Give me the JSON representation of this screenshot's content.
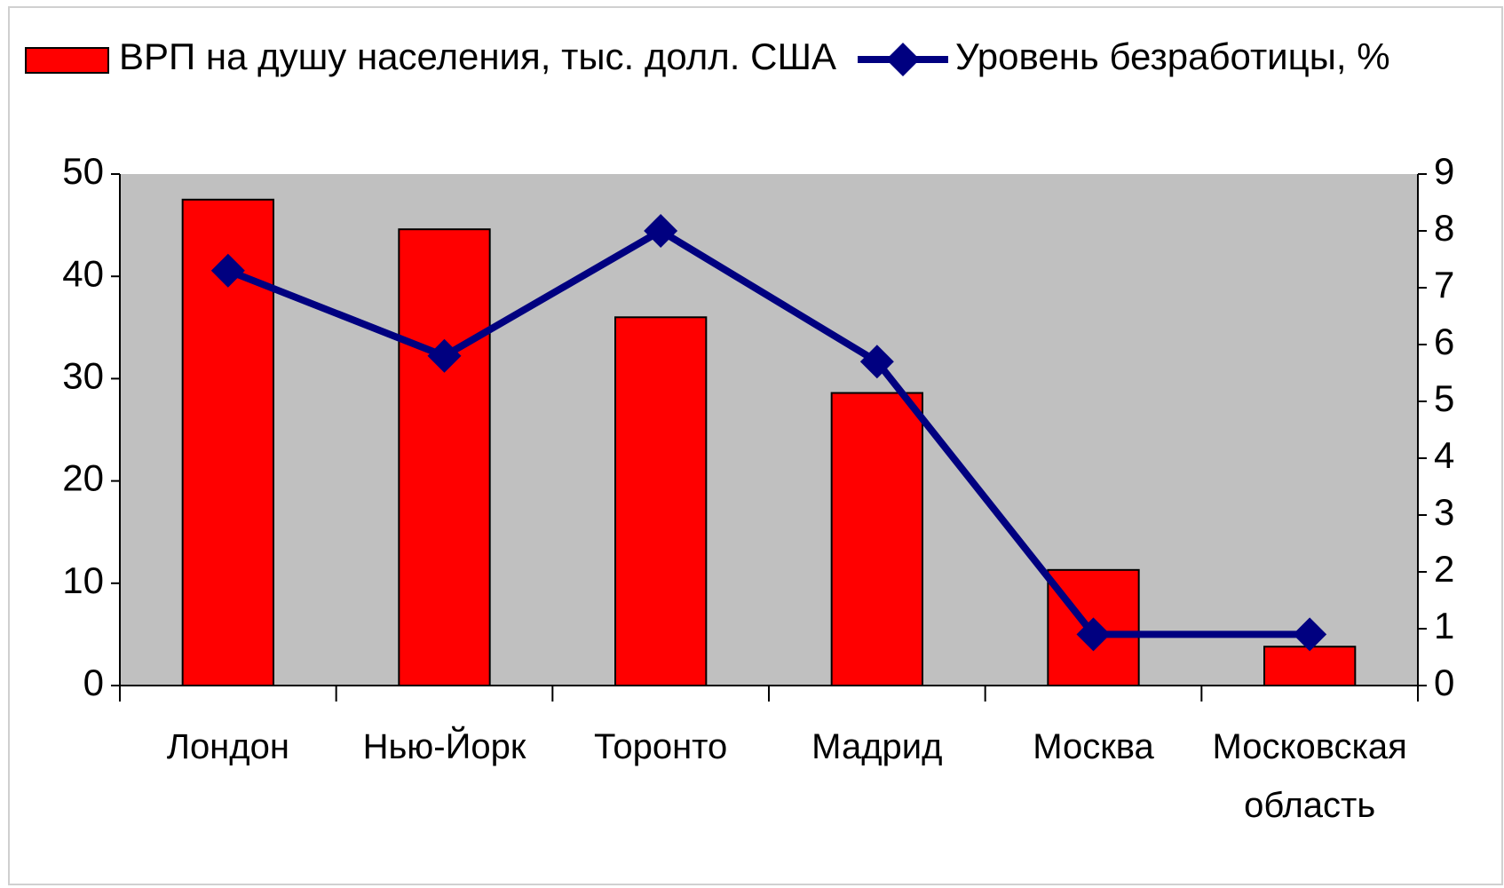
{
  "chart_data": {
    "type": "bar_line",
    "categories": [
      "Лондон",
      "Нью-Йорк",
      "Торонто",
      "Мадрид",
      "Москва",
      "Московская область"
    ],
    "series": [
      {
        "name": "ВРП на душу населения, тыс. долл. США",
        "color": "#ff0000",
        "type": "bar",
        "values": [
          47.5,
          44.6,
          36,
          28.6,
          11.3,
          3.8
        ]
      },
      {
        "name": "Уровень безработицы, %",
        "color": "#000080",
        "type": "line",
        "axis": "y2",
        "values": [
          7.3,
          5.8,
          8.0,
          5.7,
          0.9,
          0.9
        ]
      }
    ],
    "ylim": [
      0,
      50
    ],
    "yticks": [
      0,
      10,
      20,
      30,
      40,
      50
    ],
    "y2lim": [
      0,
      9
    ],
    "y2ticks": [
      0,
      1,
      2,
      3,
      4,
      5,
      6,
      7,
      8,
      9
    ],
    "plot_background": "#c0c0c0",
    "legend": "top"
  }
}
